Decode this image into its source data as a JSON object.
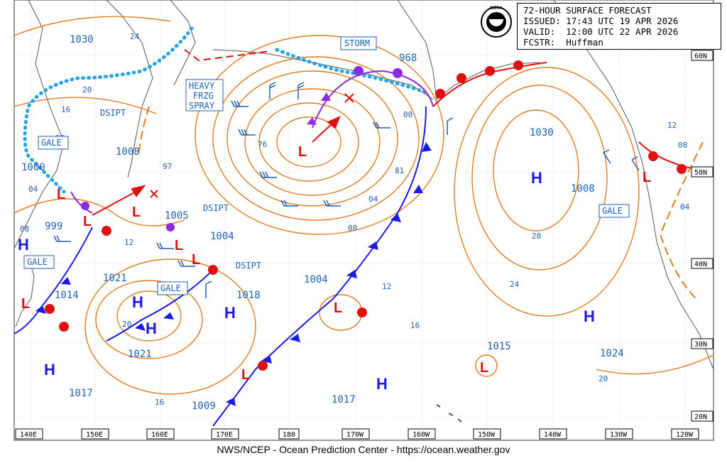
{
  "header": {
    "title": "72-HOUR SURFACE FORECAST",
    "issued": "ISSUED: 17:43 UTC 19 APR 2026",
    "valid": "VALID:  12:00 UTC 22 APR 2026",
    "forecaster": "FCSTR:  Huffman",
    "logo_text": "NOAA"
  },
  "footer": {
    "credit": "NWS/NCEP - Ocean Prediction Center - https://ocean.weather.gov"
  },
  "axes": {
    "longitude_labels": [
      "140E",
      "150E",
      "160E",
      "170E",
      "180",
      "170W",
      "160W",
      "150W",
      "140W",
      "130W",
      "120W"
    ],
    "latitude_labels": [
      "60N",
      "50N",
      "40N",
      "30N",
      "20N"
    ]
  },
  "pressure_labels": [
    "1030",
    "1008",
    "1000",
    "999",
    "1014",
    "1021",
    "1021",
    "1017",
    "1005",
    "1004",
    "1018",
    "1009",
    "1004",
    "1017",
    "968",
    "1030",
    "1008",
    "1015",
    "1024"
  ],
  "isobar_short_labels": [
    "24",
    "20",
    "16",
    "12",
    "04",
    "08",
    "12",
    "20",
    "16",
    "76",
    "81",
    "04",
    "08",
    "12",
    "16",
    "00",
    "28",
    "24",
    "20",
    "97",
    "12",
    "08",
    "04"
  ],
  "text_labels": {
    "heavy_frzg_spray": [
      "HEAVY",
      "FRZG",
      "SPRAY"
    ],
    "storm": "STORM",
    "gale": "GALE",
    "dsipt": "DSIPT"
  },
  "systems": {
    "highs": 8,
    "lows": 10,
    "high_symbol": "H",
    "low_symbol": "L"
  },
  "colors": {
    "isobar": "#e07b1f",
    "low": "#e01010",
    "high": "#1a1ae0",
    "cold_front": "#1a1ae0",
    "warm_front": "#e01010",
    "occluded_front": "#8a2be2",
    "ice_edge": "#29a3e6",
    "wind_barb": "#1f5fb5",
    "land": "#555555",
    "grid": "#999999"
  }
}
